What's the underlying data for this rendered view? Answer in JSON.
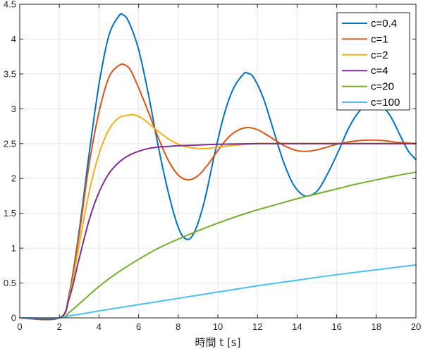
{
  "chart_data": {
    "type": "line",
    "title": "",
    "xlabel": "時間 t [s]",
    "ylabel": "",
    "xlim": [
      0,
      20
    ],
    "ylim": [
      0,
      4.5
    ],
    "xticks": [
      0,
      2,
      4,
      6,
      8,
      10,
      12,
      14,
      16,
      18,
      20
    ],
    "yticks": [
      0,
      0.5,
      1,
      1.5,
      2,
      2.5,
      3,
      3.5,
      4,
      4.5
    ],
    "grid": true,
    "legend_position": "top-right",
    "series": [
      {
        "name": "c=0.4",
        "color": "#0072BD",
        "x": [
          0,
          2,
          2.5,
          3,
          3.5,
          4,
          4.5,
          5,
          5.2,
          5.5,
          6,
          6.5,
          7,
          7.5,
          8,
          8.4,
          8.8,
          9.3,
          9.8,
          10.3,
          10.8,
          11.3,
          11.5,
          11.8,
          12.3,
          12.8,
          13.3,
          13.8,
          14.3,
          14.7,
          15.1,
          15.6,
          16.1,
          16.6,
          17.1,
          17.6,
          17.9,
          18.2,
          18.7,
          19.2,
          19.6,
          20
        ],
        "y": [
          0,
          0,
          0.35,
          1.25,
          2.35,
          3.35,
          4.05,
          4.33,
          4.35,
          4.25,
          3.85,
          3.2,
          2.45,
          1.8,
          1.3,
          1.13,
          1.22,
          1.65,
          2.3,
          2.9,
          3.3,
          3.5,
          3.51,
          3.45,
          3.15,
          2.7,
          2.25,
          1.92,
          1.76,
          1.76,
          1.85,
          2.1,
          2.4,
          2.72,
          2.95,
          3.08,
          3.1,
          3.07,
          2.9,
          2.62,
          2.4,
          2.27
        ]
      },
      {
        "name": "c=1",
        "color": "#D95319",
        "x": [
          0,
          2,
          2.5,
          3,
          3.5,
          4,
          4.5,
          5,
          5.3,
          5.6,
          6,
          6.5,
          7,
          7.5,
          8,
          8.5,
          9,
          9.5,
          10,
          10.5,
          11,
          11.5,
          12,
          12.5,
          13,
          13.5,
          14,
          14.5,
          15,
          15.5,
          16,
          16.5,
          17,
          17.5,
          18,
          18.5,
          19,
          19.5,
          20
        ],
        "y": [
          0,
          0,
          0.33,
          1.2,
          2.2,
          2.95,
          3.45,
          3.62,
          3.63,
          3.55,
          3.3,
          2.95,
          2.58,
          2.26,
          2.05,
          1.98,
          2.04,
          2.2,
          2.4,
          2.58,
          2.69,
          2.73,
          2.7,
          2.62,
          2.53,
          2.45,
          2.4,
          2.39,
          2.41,
          2.45,
          2.49,
          2.52,
          2.54,
          2.55,
          2.55,
          2.54,
          2.52,
          2.51,
          2.5
        ]
      },
      {
        "name": "c=2",
        "color": "#EDB120",
        "x": [
          0,
          2,
          2.5,
          3,
          3.5,
          4,
          4.5,
          5,
          5.5,
          5.8,
          6.2,
          6.8,
          7.5,
          8.2,
          9,
          9.5,
          10,
          11,
          12,
          13,
          14,
          16,
          18,
          20
        ],
        "y": [
          0,
          0,
          0.3,
          1.05,
          1.8,
          2.35,
          2.7,
          2.87,
          2.91,
          2.91,
          2.86,
          2.72,
          2.57,
          2.47,
          2.43,
          2.43,
          2.45,
          2.48,
          2.5,
          2.5,
          2.5,
          2.5,
          2.5,
          2.5
        ]
      },
      {
        "name": "c=4",
        "color": "#7E2F8E",
        "x": [
          0,
          2,
          2.5,
          3,
          3.5,
          4,
          4.5,
          5,
          5.5,
          6,
          6.5,
          7,
          7.5,
          8,
          9,
          10,
          11,
          12,
          13,
          14,
          16,
          18,
          20
        ],
        "y": [
          0,
          0,
          0.28,
          0.85,
          1.4,
          1.8,
          2.07,
          2.23,
          2.33,
          2.39,
          2.43,
          2.45,
          2.46,
          2.47,
          2.48,
          2.49,
          2.495,
          2.5,
          2.5,
          2.5,
          2.5,
          2.5,
          2.5
        ]
      },
      {
        "name": "c=20",
        "color": "#77AC30",
        "x": [
          0,
          2,
          2.5,
          3,
          4,
          5,
          6,
          7,
          8,
          9,
          10,
          11,
          12,
          13,
          14,
          15,
          16,
          17,
          18,
          19,
          20
        ],
        "y": [
          0,
          0,
          0.08,
          0.2,
          0.45,
          0.66,
          0.84,
          1.0,
          1.13,
          1.25,
          1.36,
          1.46,
          1.55,
          1.63,
          1.71,
          1.78,
          1.85,
          1.92,
          1.98,
          2.04,
          2.09
        ]
      },
      {
        "name": "c=100",
        "color": "#4DBEEE",
        "x": [
          0,
          2,
          2.5,
          3,
          4,
          6,
          8,
          10,
          12,
          14,
          16,
          18,
          20
        ],
        "y": [
          0,
          0,
          0.03,
          0.05,
          0.1,
          0.19,
          0.28,
          0.37,
          0.46,
          0.54,
          0.62,
          0.69,
          0.76
        ]
      }
    ]
  }
}
